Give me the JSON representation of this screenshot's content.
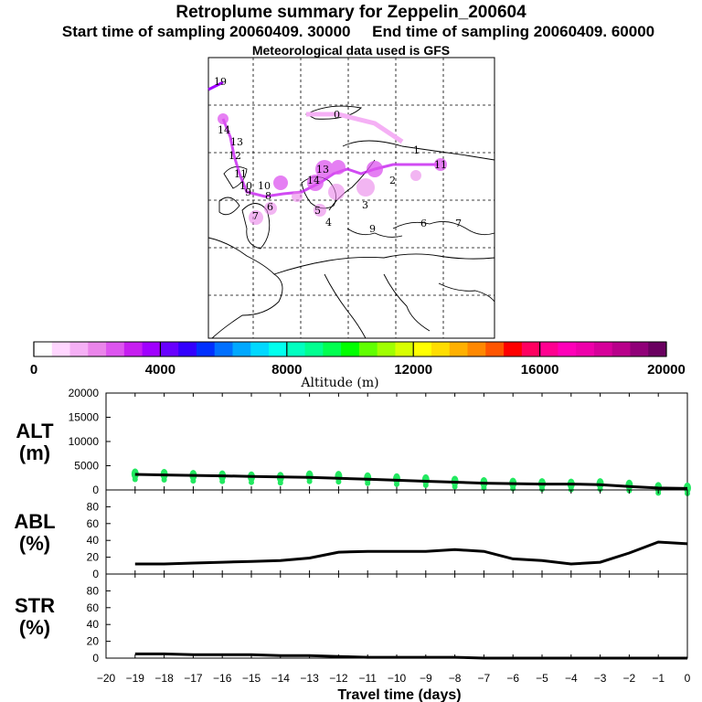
{
  "header": {
    "title": "Retroplume summary for Zeppelin_200604",
    "start_label": "Start time of sampling 20060409. 30000",
    "end_label": "End time of sampling 20060409. 60000",
    "met_label": "Meteorological data used is GFS"
  },
  "colorbar": {
    "colors": [
      "#ffffff",
      "#ffd6ff",
      "#f5b0f5",
      "#ea85ea",
      "#dd55ef",
      "#c61ef0",
      "#a000ff",
      "#6800ff",
      "#3300ff",
      "#0030ff",
      "#0070ff",
      "#00a8ff",
      "#00d8ff",
      "#00ffee",
      "#00ffc0",
      "#00ff90",
      "#00ff50",
      "#00ff00",
      "#60ff00",
      "#a0ff00",
      "#d8ff00",
      "#ffff00",
      "#ffdd00",
      "#ffb000",
      "#ff8800",
      "#ff5500",
      "#ff0000",
      "#ff0060",
      "#ff0090",
      "#ff00b8",
      "#ee00aa",
      "#d6009a",
      "#b8008a",
      "#900078",
      "#6a0060"
    ],
    "labels": [
      "0",
      "4000",
      "8000",
      "12000",
      "16000",
      "20000"
    ],
    "title": "Altitude (m)"
  },
  "map_labels": [
    {
      "t": "19"
    },
    {
      "t": "14"
    },
    {
      "t": "13"
    },
    {
      "t": "12"
    },
    {
      "t": "11"
    },
    {
      "t": "10"
    },
    {
      "t": "9"
    },
    {
      "t": "8"
    },
    {
      "t": "7"
    },
    {
      "t": "6"
    },
    {
      "t": "5"
    },
    {
      "t": "4"
    },
    {
      "t": "3"
    },
    {
      "t": "2"
    },
    {
      "t": "1"
    },
    {
      "t": "0"
    },
    {
      "t": "10"
    },
    {
      "t": "13"
    },
    {
      "t": "14"
    },
    {
      "t": "11"
    },
    {
      "t": "9"
    },
    {
      "t": "6"
    },
    {
      "t": "7"
    }
  ],
  "panels": {
    "alt": {
      "label_top": "ALT",
      "label_bottom": "(m)"
    },
    "abl": {
      "label_top": "ABL",
      "label_bottom": "(%)"
    },
    "str": {
      "label_top": "STR",
      "label_bottom": "(%)"
    },
    "xlabel": "Travel time (days)"
  },
  "chart_data": [
    {
      "name": "ALT",
      "type": "line",
      "ylabel": "ALT (m)",
      "ylim": [
        0,
        20000
      ],
      "yticks": [
        "0",
        "5000",
        "10000",
        "15000",
        "20000"
      ],
      "xlim": [
        -20,
        0
      ],
      "x": [
        -19,
        -18,
        -17,
        -16,
        -15,
        -14,
        -13,
        -12,
        -11,
        -10,
        -9,
        -8,
        -7,
        -6,
        -5,
        -4,
        -3,
        -2,
        -1,
        0
      ],
      "values": [
        3200,
        3100,
        3000,
        2900,
        2800,
        2700,
        2600,
        2400,
        2200,
        2000,
        1800,
        1600,
        1400,
        1300,
        1200,
        1200,
        1100,
        700,
        400,
        300
      ],
      "scatter_values": [
        3300,
        3200,
        3000,
        2900,
        2700,
        2600,
        2900,
        2800,
        2500,
        2300,
        2100,
        1800,
        1500,
        1400,
        1300,
        1200,
        1300,
        1000,
        500,
        400
      ]
    },
    {
      "name": "ABL",
      "type": "line",
      "ylabel": "ABL (%)",
      "ylim": [
        0,
        100
      ],
      "yticks": [
        "0",
        "20",
        "40",
        "60",
        "80"
      ],
      "xlim": [
        -20,
        0
      ],
      "x": [
        -19,
        -18,
        -17,
        -16,
        -15,
        -14,
        -13,
        -12,
        -11,
        -10,
        -9,
        -8,
        -7,
        -6,
        -5,
        -4,
        -3,
        -2,
        -1,
        0
      ],
      "values": [
        12,
        12,
        13,
        14,
        15,
        16,
        19,
        26,
        27,
        27,
        27,
        29,
        27,
        18,
        16,
        12,
        14,
        25,
        38,
        36
      ]
    },
    {
      "name": "STR",
      "type": "line",
      "ylabel": "STR (%)",
      "ylim": [
        0,
        100
      ],
      "yticks": [
        "0",
        "20",
        "40",
        "60",
        "80"
      ],
      "xlim": [
        -20,
        0
      ],
      "x": [
        -19,
        -18,
        -17,
        -16,
        -15,
        -14,
        -13,
        -12,
        -11,
        -10,
        -9,
        -8,
        -7,
        -6,
        -5,
        -4,
        -3,
        -2,
        -1,
        0
      ],
      "values": [
        5,
        5,
        4,
        4,
        4,
        3,
        3,
        2,
        1,
        1,
        1,
        1,
        0,
        0,
        0,
        0,
        0,
        0,
        0,
        0
      ]
    }
  ],
  "xticks": [
    "−20",
    "−19",
    "−18",
    "−17",
    "−16",
    "−15",
    "−14",
    "−13",
    "−12",
    "−11",
    "−10",
    "−9",
    "−8",
    "−7",
    "−6",
    "−5",
    "−4",
    "−3",
    "−2",
    "−1",
    "0"
  ]
}
